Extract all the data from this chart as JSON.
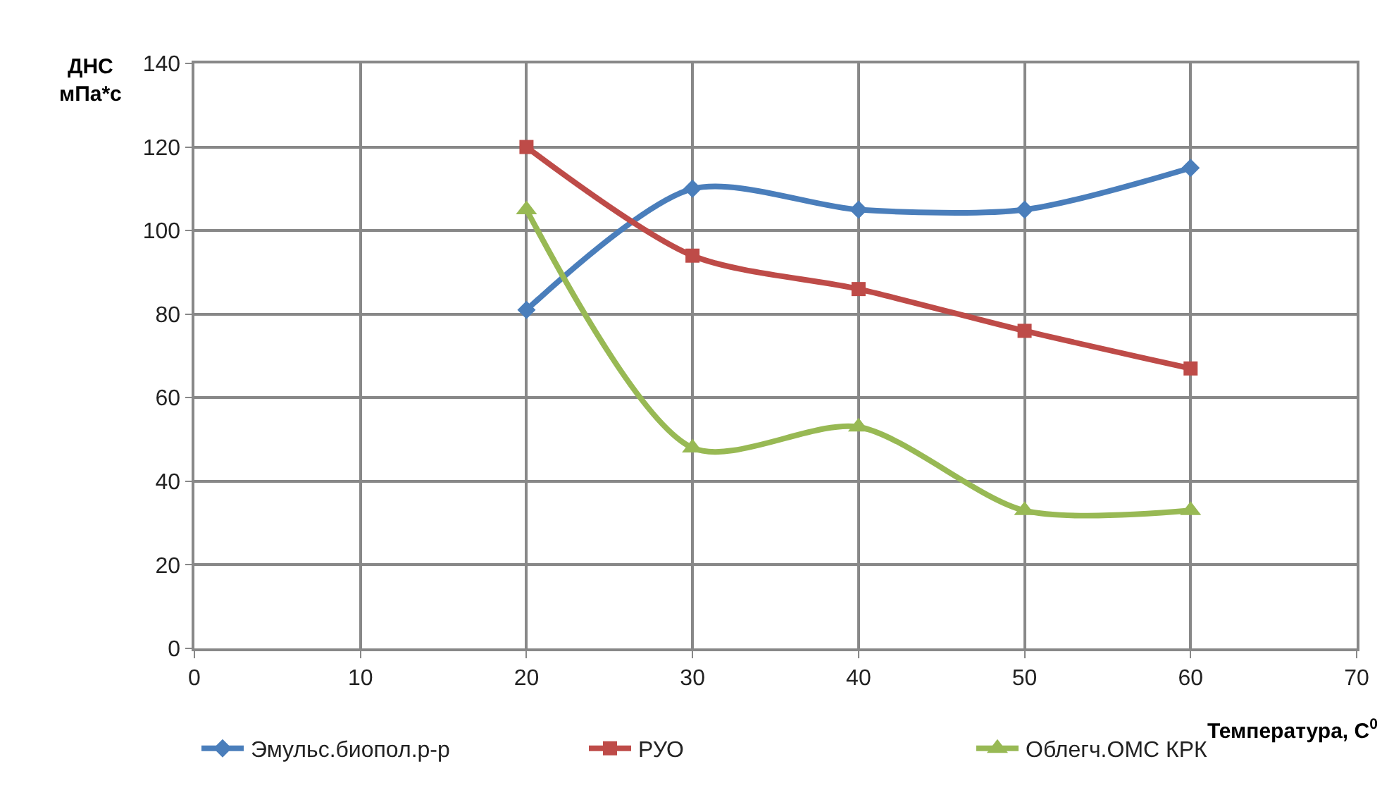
{
  "chart_data": {
    "type": "line",
    "ylabel": "ДНС\nмПа*с",
    "xlabel": "Температура, C$^{0}$",
    "x": [
      20,
      30,
      40,
      50,
      60
    ],
    "series": [
      {
        "name": "Эмульс.биопол.р-р",
        "color": "#4a7ebb",
        "marker": "diamond",
        "values": [
          81,
          110,
          105,
          105,
          115
        ]
      },
      {
        "name": "РУО",
        "color": "#be4b48",
        "marker": "square",
        "values": [
          120,
          94,
          86,
          76,
          67
        ]
      },
      {
        "name": "Облегч.ОМС КРК",
        "color": "#98b954",
        "marker": "triangle",
        "values": [
          105,
          48,
          53,
          33,
          33
        ]
      }
    ],
    "xlim": [
      0,
      70
    ],
    "xticks": [
      0,
      10,
      20,
      30,
      40,
      50,
      60,
      70
    ],
    "ylim": [
      0,
      140
    ],
    "yticks": [
      0,
      20,
      40,
      60,
      80,
      100,
      120,
      140
    ],
    "grid": true,
    "legend": "bottom",
    "line_style": "solid"
  }
}
